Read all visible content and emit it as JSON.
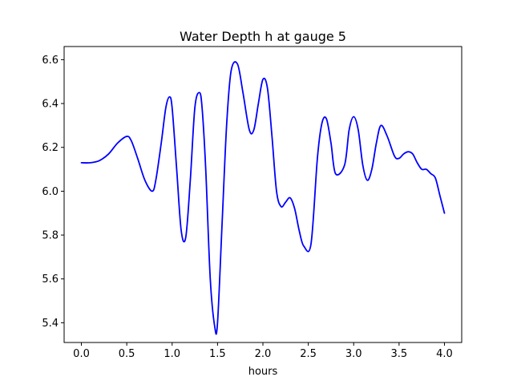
{
  "chart_data": {
    "type": "line",
    "title": "Water Depth h at gauge 5",
    "xlabel": "hours",
    "ylabel": "",
    "xlim": [
      -0.19,
      4.19
    ],
    "ylim": [
      5.31,
      6.66
    ],
    "xticks": [
      "0.0",
      "0.5",
      "1.0",
      "1.5",
      "2.0",
      "2.5",
      "3.0",
      "3.5",
      "4.0"
    ],
    "xtick_values": [
      0.0,
      0.5,
      1.0,
      1.5,
      2.0,
      2.5,
      3.0,
      3.5,
      4.0
    ],
    "yticks": [
      "5.4",
      "5.6",
      "5.8",
      "6.0",
      "6.2",
      "6.4",
      "6.6"
    ],
    "ytick_values": [
      5.4,
      5.6,
      5.8,
      6.0,
      6.2,
      6.4,
      6.6
    ],
    "grid": false,
    "series": [
      {
        "color": "#0000ff",
        "x": [
          0.0,
          0.1,
          0.2,
          0.3,
          0.4,
          0.5,
          0.55,
          0.62,
          0.7,
          0.78,
          0.82,
          0.88,
          0.93,
          0.97,
          1.0,
          1.05,
          1.1,
          1.15,
          1.2,
          1.25,
          1.3,
          1.33,
          1.37,
          1.42,
          1.47,
          1.5,
          1.55,
          1.6,
          1.65,
          1.72,
          1.78,
          1.85,
          1.9,
          1.95,
          2.0,
          2.05,
          2.1,
          2.15,
          2.2,
          2.25,
          2.3,
          2.35,
          2.4,
          2.45,
          2.53,
          2.6,
          2.65,
          2.7,
          2.75,
          2.8,
          2.9,
          2.95,
          3.0,
          3.05,
          3.1,
          3.15,
          3.2,
          3.25,
          3.3,
          3.37,
          3.45,
          3.5,
          3.55,
          3.6,
          3.65,
          3.7,
          3.75,
          3.8,
          3.85,
          3.9,
          3.95,
          4.0
        ],
        "y": [
          6.13,
          6.13,
          6.14,
          6.17,
          6.22,
          6.25,
          6.23,
          6.15,
          6.05,
          6.0,
          6.05,
          6.22,
          6.38,
          6.43,
          6.38,
          6.1,
          5.82,
          5.79,
          6.05,
          6.38,
          6.45,
          6.38,
          6.1,
          5.6,
          5.38,
          5.4,
          5.85,
          6.3,
          6.55,
          6.58,
          6.45,
          6.28,
          6.28,
          6.4,
          6.51,
          6.47,
          6.25,
          6.0,
          5.93,
          5.95,
          5.97,
          5.92,
          5.82,
          5.75,
          5.76,
          6.15,
          6.31,
          6.33,
          6.22,
          6.08,
          6.12,
          6.28,
          6.34,
          6.28,
          6.12,
          6.05,
          6.1,
          6.22,
          6.3,
          6.25,
          6.16,
          6.15,
          6.17,
          6.18,
          6.17,
          6.13,
          6.1,
          6.1,
          6.08,
          6.06,
          5.98,
          5.9
        ]
      }
    ]
  }
}
